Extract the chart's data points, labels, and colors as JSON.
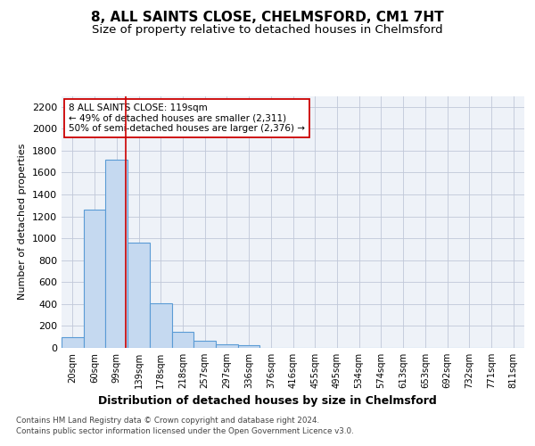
{
  "title_line1": "8, ALL SAINTS CLOSE, CHELMSFORD, CM1 7HT",
  "title_line2": "Size of property relative to detached houses in Chelmsford",
  "xlabel": "Distribution of detached houses by size in Chelmsford",
  "ylabel": "Number of detached properties",
  "categories": [
    "20sqm",
    "60sqm",
    "99sqm",
    "139sqm",
    "178sqm",
    "218sqm",
    "257sqm",
    "297sqm",
    "336sqm",
    "376sqm",
    "416sqm",
    "455sqm",
    "495sqm",
    "534sqm",
    "574sqm",
    "613sqm",
    "653sqm",
    "692sqm",
    "732sqm",
    "771sqm",
    "811sqm"
  ],
  "values": [
    100,
    1260,
    1720,
    960,
    410,
    148,
    65,
    35,
    22,
    0,
    0,
    0,
    0,
    0,
    0,
    0,
    0,
    0,
    0,
    0,
    0
  ],
  "ylim": [
    0,
    2300
  ],
  "yticks": [
    0,
    200,
    400,
    600,
    800,
    1000,
    1200,
    1400,
    1600,
    1800,
    2000,
    2200
  ],
  "bar_color": "#c5d9f0",
  "bar_edge_color": "#5a9bd5",
  "bar_linewidth": 0.8,
  "vline_x_index": 2.42,
  "vline_color": "#cc0000",
  "annotation_text": "8 ALL SAINTS CLOSE: 119sqm\n← 49% of detached houses are smaller (2,311)\n50% of semi-detached houses are larger (2,376) →",
  "annotation_box_edgecolor": "#cc0000",
  "annotation_fontsize": 7.5,
  "grid_color": "#c0c8d8",
  "bg_color": "#eef2f8",
  "footer_line1": "Contains HM Land Registry data © Crown copyright and database right 2024.",
  "footer_line2": "Contains public sector information licensed under the Open Government Licence v3.0.",
  "title1_fontsize": 11,
  "title2_fontsize": 9.5,
  "ylabel_fontsize": 8,
  "xlabel_fontsize": 9,
  "ytick_fontsize": 8,
  "xtick_fontsize": 7.2
}
